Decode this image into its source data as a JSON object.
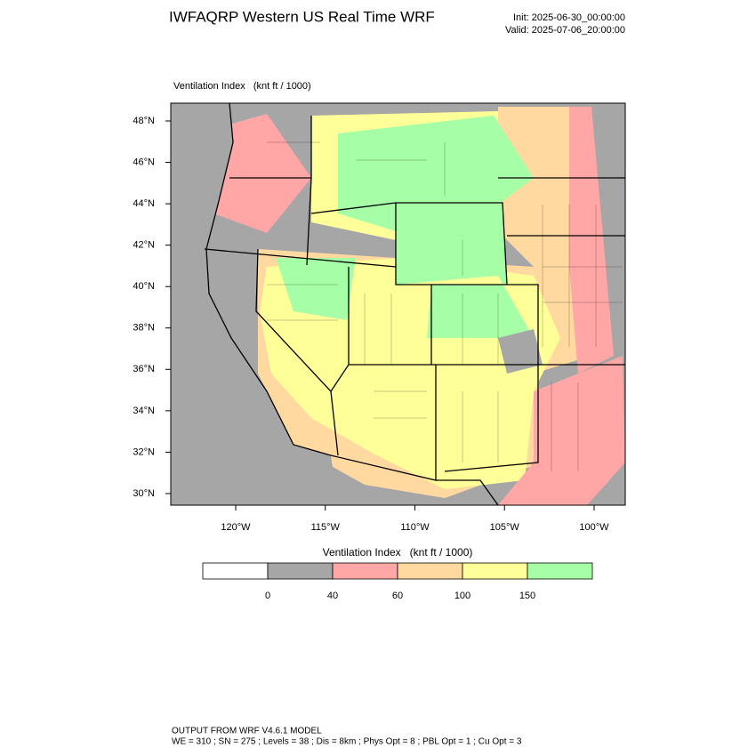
{
  "header": {
    "title": "IWFAQRP Western US Real Time WRF",
    "init": "Init: 2025-06-30_00:00:00",
    "valid": "Valid: 2025-07-06_20:00:00"
  },
  "map": {
    "label": "Ventilation Index   (knt ft / 1000)",
    "lat_labels": [
      "48°N",
      "46°N",
      "44°N",
      "42°N",
      "40°N",
      "38°N",
      "36°N",
      "34°N",
      "32°N",
      "30°N"
    ],
    "lon_labels": [
      "120°W",
      "115°W",
      "110°W",
      "105°W",
      "100°W"
    ]
  },
  "colorbar": {
    "title": "Ventilation Index   (knt ft / 1000)",
    "colors": [
      "#ffffff",
      "#a6a6a6",
      "#ffa6a6",
      "#ffd9a0",
      "#ffff99",
      "#a6ffa6"
    ],
    "labels": [
      "0",
      "40",
      "60",
      "100",
      "150"
    ]
  },
  "footer": {
    "line1": "OUTPUT FROM WRF V4.6.1 MODEL",
    "line2": "WE = 310 ; SN = 275 ; Levels = 38 ; Dis = 8km ; Phys Opt = 8 ; PBL Opt = 1 ; Cu Opt = 3"
  }
}
